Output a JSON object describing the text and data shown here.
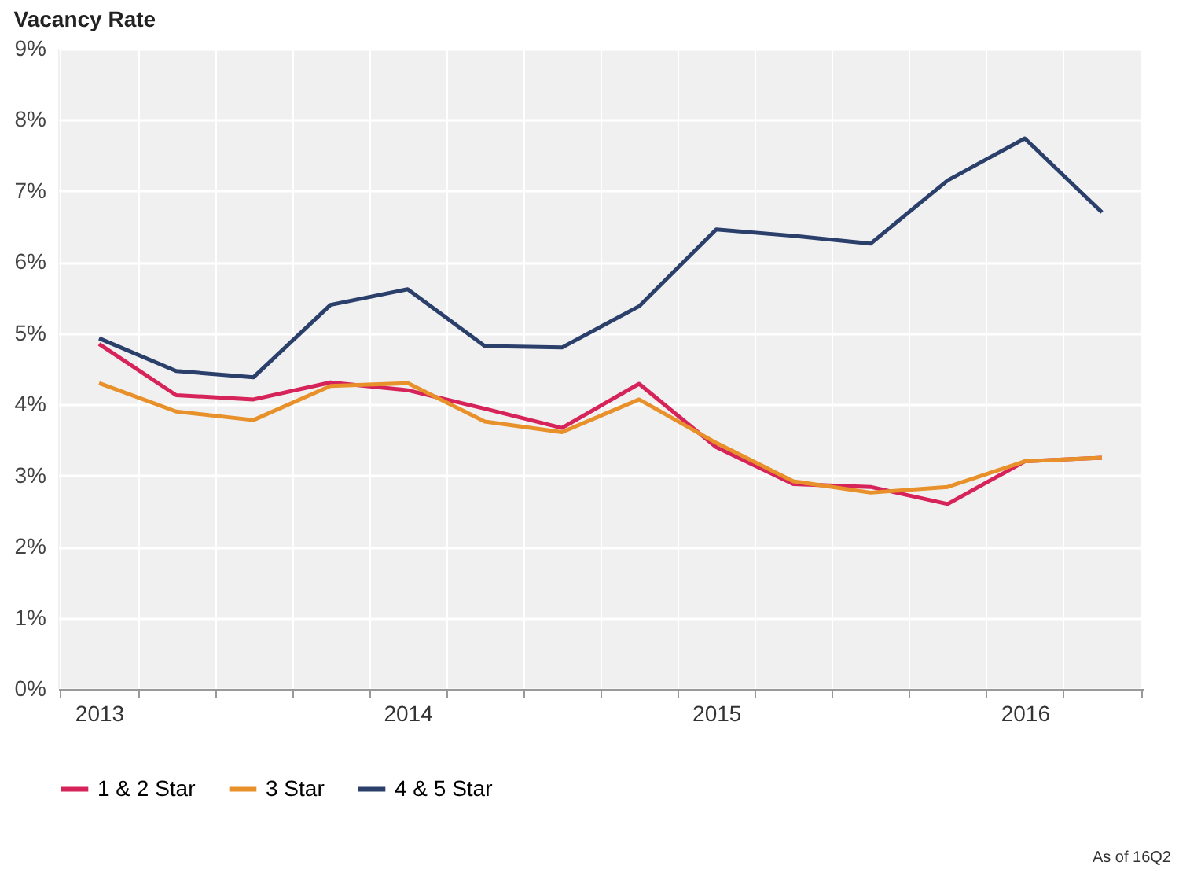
{
  "chart_data": {
    "type": "line",
    "title": "Vacancy Rate",
    "categories": [
      "2013",
      null,
      null,
      null,
      "2014",
      null,
      null,
      null,
      "2015",
      null,
      null,
      null,
      "2016",
      null
    ],
    "series": [
      {
        "name": "1 & 2 Star",
        "color": "#d6245a",
        "values": [
          4.85,
          4.13,
          4.07,
          4.31,
          4.2,
          3.94,
          3.67,
          4.29,
          3.4,
          2.88,
          2.84,
          2.6,
          3.2,
          3.25
        ]
      },
      {
        "name": "3 Star",
        "color": "#e8902a",
        "values": [
          4.3,
          3.9,
          3.78,
          4.26,
          4.3,
          3.76,
          3.61,
          4.07,
          3.46,
          2.92,
          2.76,
          2.84,
          3.2,
          3.25
        ]
      },
      {
        "name": "4 & 5 Star",
        "color": "#2b3f6b",
        "values": [
          4.93,
          4.47,
          4.38,
          5.4,
          5.62,
          4.82,
          4.8,
          5.38,
          6.46,
          6.37,
          6.26,
          7.15,
          7.74,
          6.7
        ]
      }
    ],
    "ylim": [
      0,
      9
    ],
    "yticks": [
      {
        "value": 0,
        "label": "0%"
      },
      {
        "value": 1,
        "label": "1%"
      },
      {
        "value": 2,
        "label": "2%"
      },
      {
        "value": 3,
        "label": "3%"
      },
      {
        "value": 4,
        "label": "4%"
      },
      {
        "value": 5,
        "label": "5%"
      },
      {
        "value": 6,
        "label": "6%"
      },
      {
        "value": 7,
        "label": "7%"
      },
      {
        "value": 8,
        "label": "8%"
      },
      {
        "value": 9,
        "label": "9%"
      }
    ],
    "grid": true,
    "legend": "bottom left",
    "marker": "none",
    "line_style": "solid",
    "annotations": [
      "As of 16Q2"
    ]
  }
}
